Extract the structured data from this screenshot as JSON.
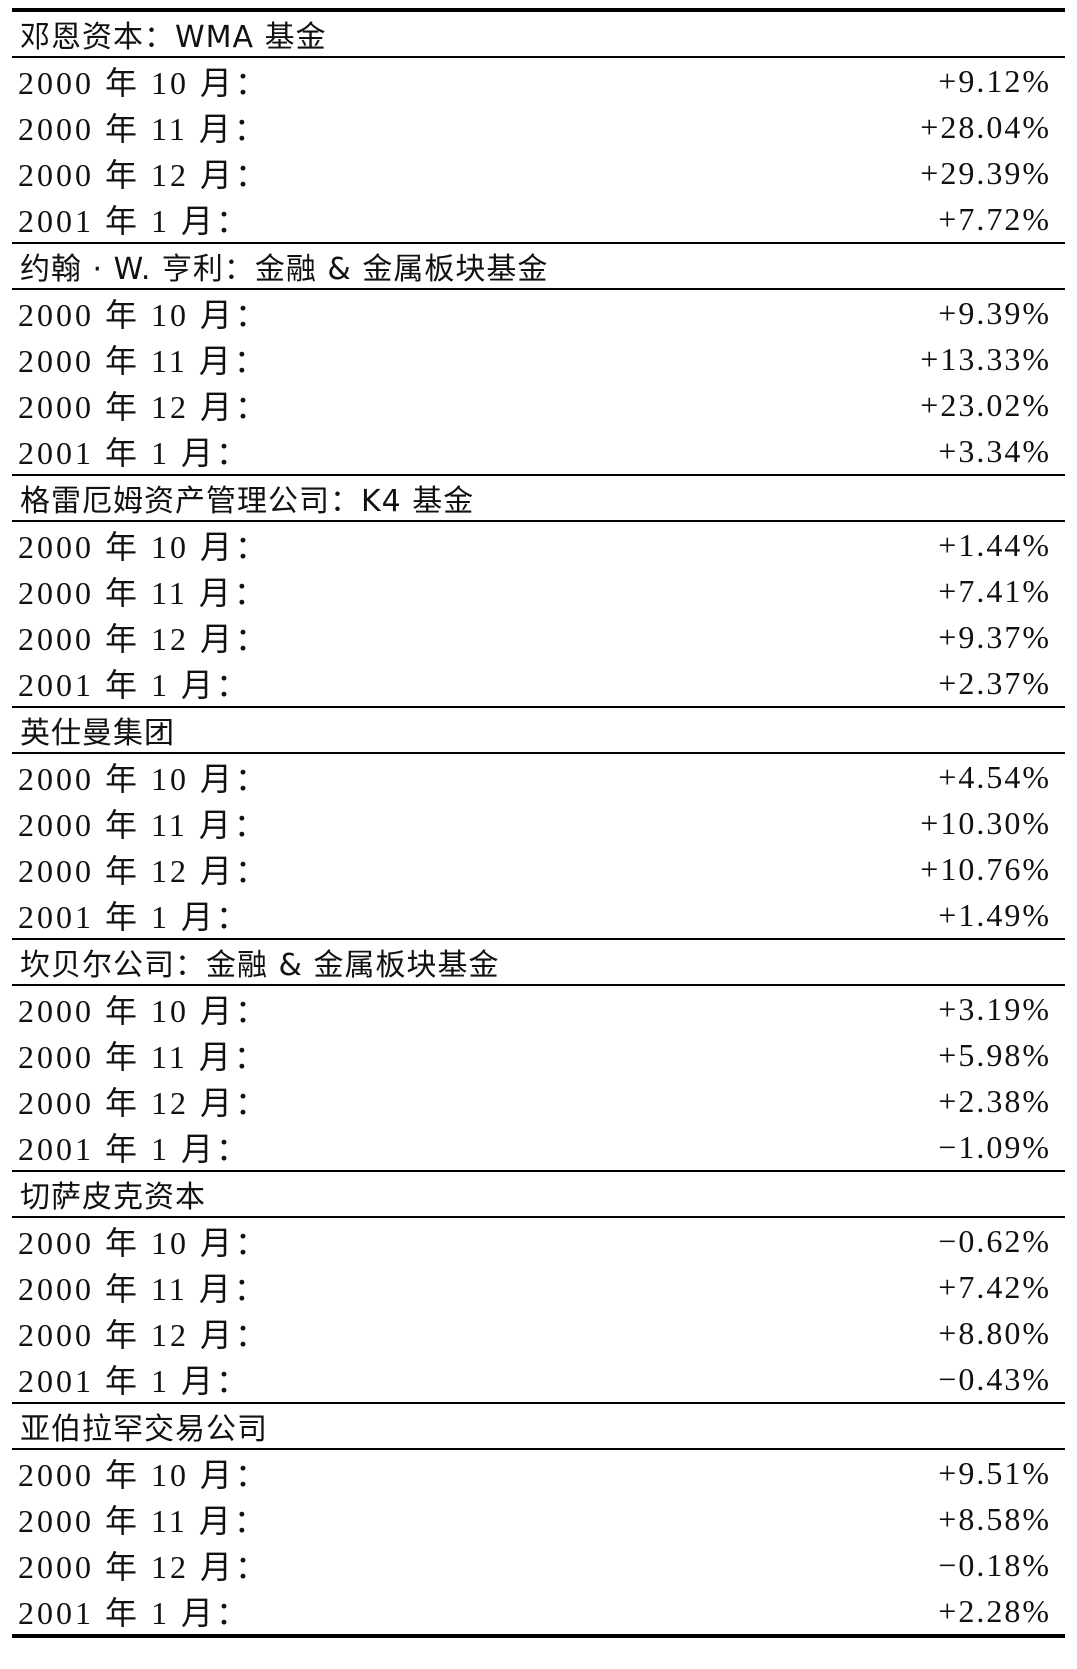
{
  "funds": [
    {
      "name": "邓恩资本：WMA 基金",
      "rows": [
        {
          "month": "2000 年 10 月：",
          "value": "+9.12%"
        },
        {
          "month": "2000 年 11 月：",
          "value": "+28.04%"
        },
        {
          "month": "2000 年 12 月：",
          "value": "+29.39%"
        },
        {
          "month": "2001 年 1 月：",
          "value": "+7.72%"
        }
      ]
    },
    {
      "name": "约翰 · W. 亨利：金融 & 金属板块基金",
      "rows": [
        {
          "month": "2000 年 10 月：",
          "value": "+9.39%"
        },
        {
          "month": "2000 年 11 月：",
          "value": "+13.33%"
        },
        {
          "month": "2000 年 12 月：",
          "value": "+23.02%"
        },
        {
          "month": "2001 年 1 月：",
          "value": "+3.34%"
        }
      ]
    },
    {
      "name": "格雷厄姆资产管理公司：K4 基金",
      "rows": [
        {
          "month": "2000 年 10 月：",
          "value": "+1.44%"
        },
        {
          "month": "2000 年 11 月：",
          "value": "+7.41%"
        },
        {
          "month": "2000 年 12 月：",
          "value": "+9.37%"
        },
        {
          "month": "2001 年 1 月：",
          "value": "+2.37%"
        }
      ]
    },
    {
      "name": "英仕曼集团",
      "rows": [
        {
          "month": "2000 年 10 月：",
          "value": "+4.54%"
        },
        {
          "month": "2000 年 11 月：",
          "value": "+10.30%"
        },
        {
          "month": "2000 年 12 月：",
          "value": "+10.76%"
        },
        {
          "month": "2001 年 1 月：",
          "value": "+1.49%"
        }
      ]
    },
    {
      "name": "坎贝尔公司：金融 & 金属板块基金",
      "rows": [
        {
          "month": "2000 年 10 月：",
          "value": "+3.19%"
        },
        {
          "month": "2000 年 11 月：",
          "value": "+5.98%"
        },
        {
          "month": "2000 年 12 月：",
          "value": "+2.38%"
        },
        {
          "month": "2001 年 1 月：",
          "value": "−1.09%"
        }
      ]
    },
    {
      "name": "切萨皮克资本",
      "rows": [
        {
          "month": "2000 年 10 月：",
          "value": "−0.62%"
        },
        {
          "month": "2000 年 11 月：",
          "value": "+7.42%"
        },
        {
          "month": "2000 年 12 月：",
          "value": "+8.80%"
        },
        {
          "month": "2001 年 1 月：",
          "value": "−0.43%"
        }
      ]
    },
    {
      "name": "亚伯拉罕交易公司",
      "rows": [
        {
          "month": "2000 年 10 月：",
          "value": "+9.51%"
        },
        {
          "month": "2000 年 11 月：",
          "value": "+8.58%"
        },
        {
          "month": "2000 年 12 月：",
          "value": "−0.18%"
        },
        {
          "month": "2001 年 1 月：",
          "value": "+2.28%"
        }
      ]
    }
  ]
}
